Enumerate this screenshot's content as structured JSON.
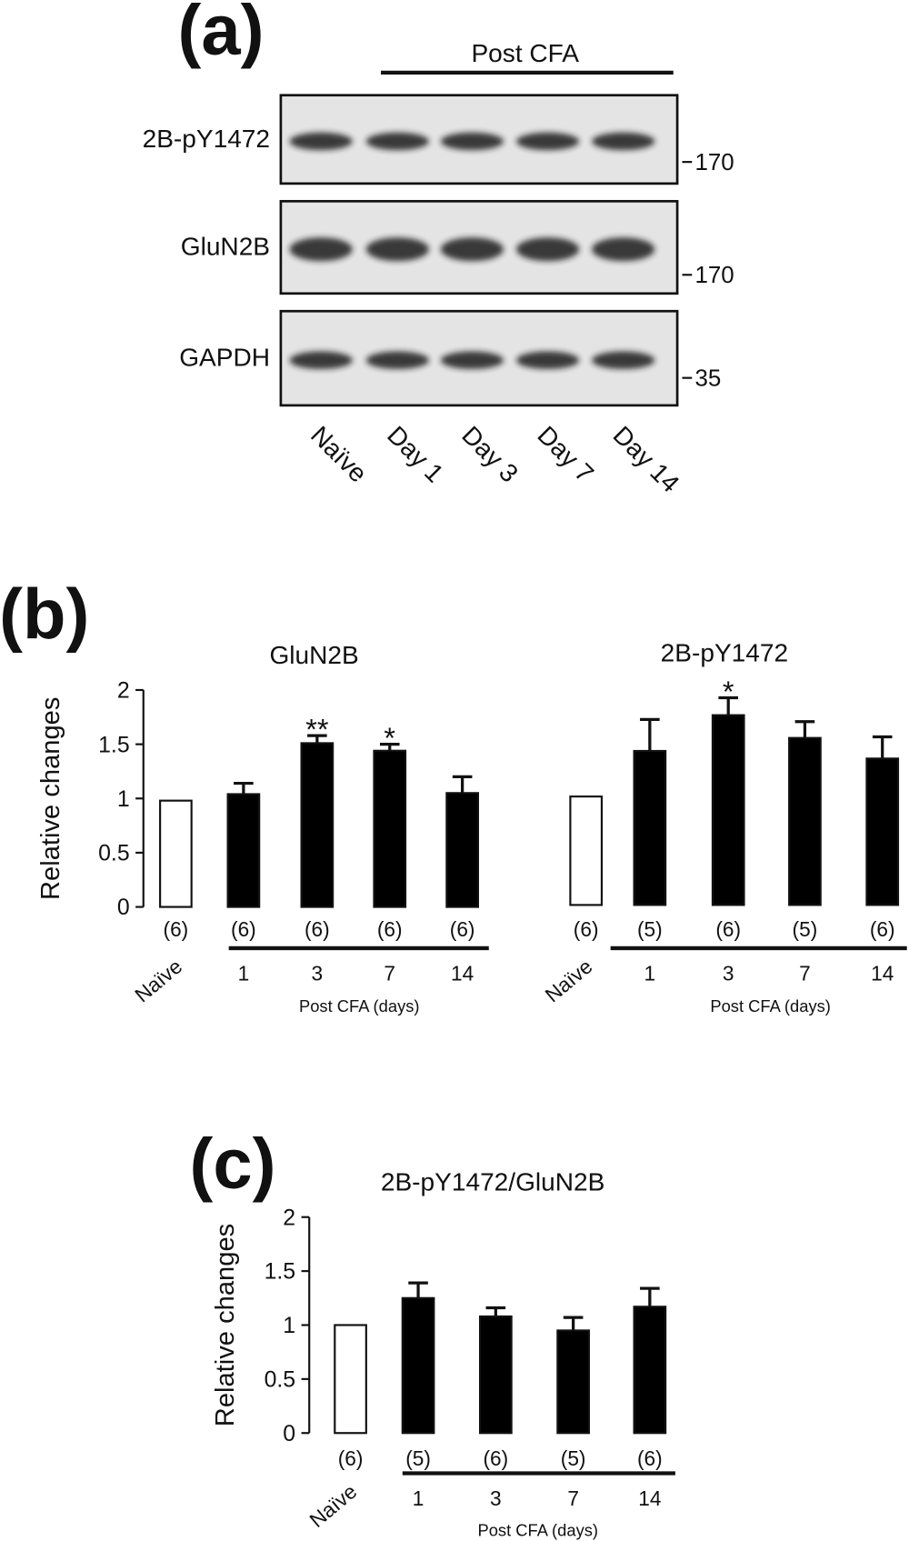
{
  "figure": {
    "panel_labels": [
      "(a)",
      "(b)",
      "(c)"
    ]
  },
  "blot": {
    "group_label": "Post CFA",
    "lanes": [
      "Naïve",
      "Day 1",
      "Day 3",
      "Day 7",
      "Day 14"
    ],
    "rows": [
      {
        "label": "2B-pY1472",
        "marker": "170"
      },
      {
        "label": "GluN2B",
        "marker": "170"
      },
      {
        "label": "GAPDH",
        "marker": "35"
      }
    ]
  },
  "chart_data": [
    {
      "type": "bar",
      "title": "GluN2B",
      "ylabel": "Relative changes",
      "xlabel": "Post CFA (days)",
      "categories": [
        "Naïve",
        "1",
        "3",
        "7",
        "14"
      ],
      "values": [
        0.98,
        1.04,
        1.51,
        1.44,
        1.05
      ],
      "errors": [
        null,
        0.1,
        0.07,
        0.06,
        0.15
      ],
      "n_labels": [
        "(6)",
        "(6)",
        "(6)",
        "(6)",
        "(6)"
      ],
      "annotations": [
        null,
        null,
        "**",
        "*",
        null
      ],
      "colors": [
        "#ffffff",
        "#000000",
        "#000000",
        "#000000",
        "#000000"
      ],
      "ylim": [
        0,
        2
      ],
      "yticks": [
        0,
        0.5,
        1,
        1.5,
        2
      ]
    },
    {
      "type": "bar",
      "title": "2B-pY1472",
      "xlabel": "Post CFA (days)",
      "categories": [
        "Naïve",
        "1",
        "3",
        "7",
        "14"
      ],
      "values": [
        1.0,
        1.42,
        1.75,
        1.54,
        1.35
      ],
      "errors": [
        null,
        0.29,
        0.16,
        0.15,
        0.2
      ],
      "n_labels": [
        "(6)",
        "(5)",
        "(6)",
        "(5)",
        "(6)"
      ],
      "annotations": [
        null,
        null,
        "*",
        null,
        null
      ],
      "colors": [
        "#ffffff",
        "#000000",
        "#000000",
        "#000000",
        "#000000"
      ],
      "ylim": [
        0,
        2
      ]
    },
    {
      "type": "bar",
      "title": "2B-pY1472/GluN2B",
      "ylabel": "Relative changes",
      "xlabel": "Post CFA (days)",
      "categories": [
        "Naïve",
        "1",
        "3",
        "7",
        "14"
      ],
      "values": [
        1.0,
        1.25,
        1.08,
        0.95,
        1.17
      ],
      "errors": [
        null,
        0.14,
        0.08,
        0.12,
        0.17
      ],
      "n_labels": [
        "(6)",
        "(5)",
        "(6)",
        "(5)",
        "(6)"
      ],
      "annotations": [
        null,
        null,
        null,
        null,
        null
      ],
      "colors": [
        "#ffffff",
        "#000000",
        "#000000",
        "#000000",
        "#000000"
      ],
      "ylim": [
        0,
        2
      ],
      "yticks": [
        0,
        0.5,
        1,
        1.5,
        2
      ]
    }
  ]
}
